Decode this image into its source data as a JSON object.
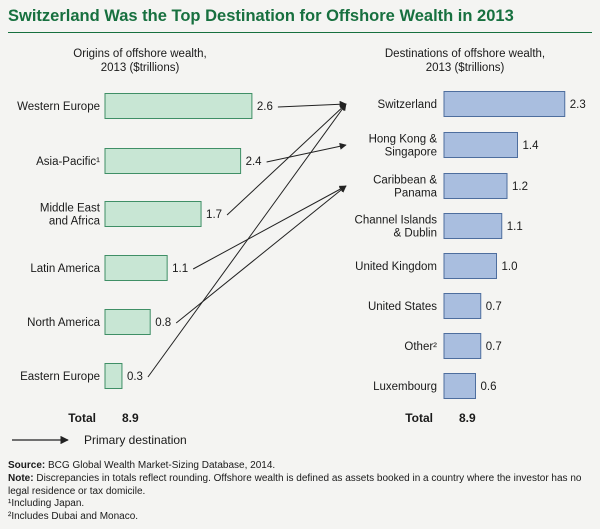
{
  "title": "Switzerland Was the Top Destination for Offshore Wealth in 2013",
  "colors": {
    "title": "#17703f",
    "origin_fill": "#c8e6d4",
    "origin_stroke": "#3f8f66",
    "dest_fill": "#a9bedf",
    "dest_stroke": "#4e6e9e",
    "arrow": "#222222"
  },
  "chart_data": [
    {
      "type": "bar",
      "orientation": "horizontal",
      "title": "Origins of offshore wealth,",
      "subtitle": "2013 ($trillions)",
      "categories": [
        [
          "Western Europe"
        ],
        [
          "Asia-Pacific¹"
        ],
        [
          "Middle East",
          "and Africa"
        ],
        [
          "Latin America"
        ],
        [
          "North America"
        ],
        [
          "Eastern Europe"
        ]
      ],
      "values": [
        2.6,
        2.4,
        1.7,
        1.1,
        0.8,
        0.3
      ],
      "labels": [
        "2.6",
        "2.4",
        "1.7",
        "1.1",
        "0.8",
        "0.3"
      ],
      "total_label": "Total",
      "total_value": "8.9"
    },
    {
      "type": "bar",
      "orientation": "horizontal",
      "title": "Destinations of offshore wealth,",
      "subtitle": "2013 ($trillions)",
      "categories": [
        [
          "Switzerland"
        ],
        [
          "Hong Kong &",
          "Singapore"
        ],
        [
          "Caribbean &",
          "Panama"
        ],
        [
          "Channel Islands",
          "& Dublin"
        ],
        [
          "United Kingdom"
        ],
        [
          "United States"
        ],
        [
          "Other²"
        ],
        [
          "Luxembourg"
        ]
      ],
      "values": [
        2.3,
        1.4,
        1.2,
        1.1,
        1.0,
        0.7,
        0.7,
        0.6
      ],
      "labels": [
        "2.3",
        "1.4",
        "1.2",
        "1.1",
        "1.0",
        "0.7",
        "0.7",
        "0.6"
      ],
      "total_label": "Total",
      "total_value": "8.9"
    }
  ],
  "flows": [
    {
      "from": "Western Europe",
      "to": "Switzerland"
    },
    {
      "from": "Asia-Pacific",
      "to": "Hong Kong & Singapore"
    },
    {
      "from": "Middle East and Africa",
      "to": "Switzerland"
    },
    {
      "from": "Latin America",
      "to": "Caribbean & Panama"
    },
    {
      "from": "North America",
      "to": "Caribbean & Panama"
    },
    {
      "from": "Eastern Europe",
      "to": "Switzerland"
    }
  ],
  "legend": {
    "label": "Primary destination"
  },
  "footnotes": {
    "source_label": "Source:",
    "source_text": " BCG Global Wealth Market-Sizing Database, 2014.",
    "note_label": "Note:",
    "note_text": " Discrepancies in totals reflect rounding. Offshore wealth is defined as assets booked in a country where the investor has no legal residence or tax domicile.",
    "fn1": "¹Including Japan.",
    "fn2": "²Includes Dubai and Monaco."
  }
}
